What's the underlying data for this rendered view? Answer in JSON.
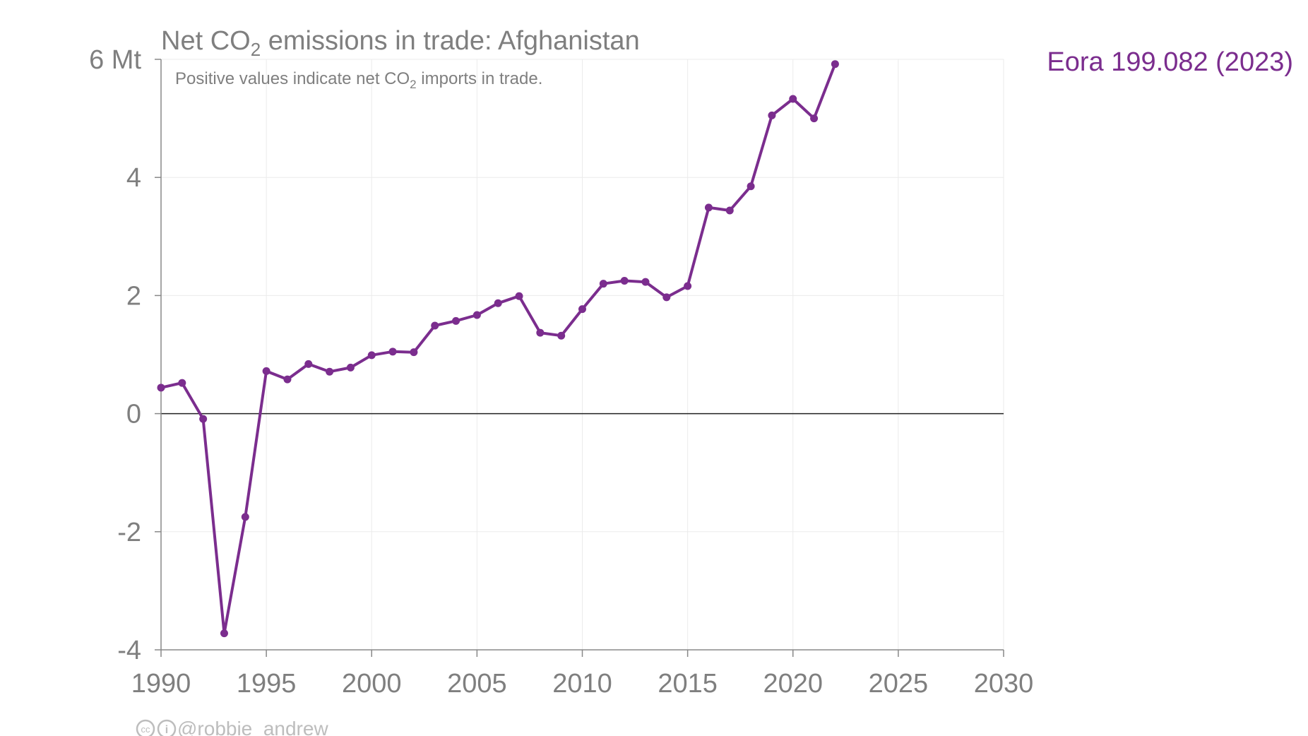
{
  "chart_data": {
    "type": "line",
    "title_prefix": "Net CO",
    "title_sub": "2",
    "title_suffix": " emissions in trade: Afghanistan",
    "subtitle_prefix": "Positive values indicate net CO",
    "subtitle_sub": "2",
    "subtitle_suffix": " imports in trade.",
    "ylabel_unit": "Mt",
    "xlim": [
      1990,
      2030
    ],
    "ylim": [
      -4,
      6
    ],
    "x_ticks": [
      1990,
      1995,
      2000,
      2005,
      2010,
      2015,
      2020,
      2025,
      2030
    ],
    "y_ticks": [
      {
        "value": -4,
        "label": "-4"
      },
      {
        "value": -2,
        "label": "-2"
      },
      {
        "value": 0,
        "label": "0"
      },
      {
        "value": 2,
        "label": "2"
      },
      {
        "value": 4,
        "label": "4"
      },
      {
        "value": 6,
        "label": "6 Mt"
      }
    ],
    "grid": true,
    "legend_position": "top-right",
    "series": [
      {
        "name": "Eora 199.082 (2023)",
        "color": "#7b2d8e",
        "x": [
          1990,
          1991,
          1992,
          1993,
          1994,
          1995,
          1996,
          1997,
          1998,
          1999,
          2000,
          2001,
          2002,
          2003,
          2004,
          2005,
          2006,
          2007,
          2008,
          2009,
          2010,
          2011,
          2012,
          2013,
          2014,
          2015,
          2016,
          2017,
          2018,
          2019,
          2020,
          2021,
          2022
        ],
        "y": [
          0.44,
          0.52,
          -0.09,
          -3.72,
          -1.75,
          0.72,
          0.58,
          0.84,
          0.71,
          0.78,
          0.99,
          1.05,
          1.04,
          1.49,
          1.57,
          1.67,
          1.87,
          1.99,
          1.37,
          1.32,
          1.77,
          2.2,
          2.25,
          2.23,
          1.97,
          2.16,
          3.49,
          3.44,
          3.85,
          5.05,
          5.33,
          5.0,
          5.92
        ]
      }
    ]
  },
  "credit": {
    "icons": [
      "cc-icon",
      "by-icon"
    ],
    "cc_glyph": "cc",
    "by_glyph": "i",
    "handle": "@robbie_andrew"
  }
}
